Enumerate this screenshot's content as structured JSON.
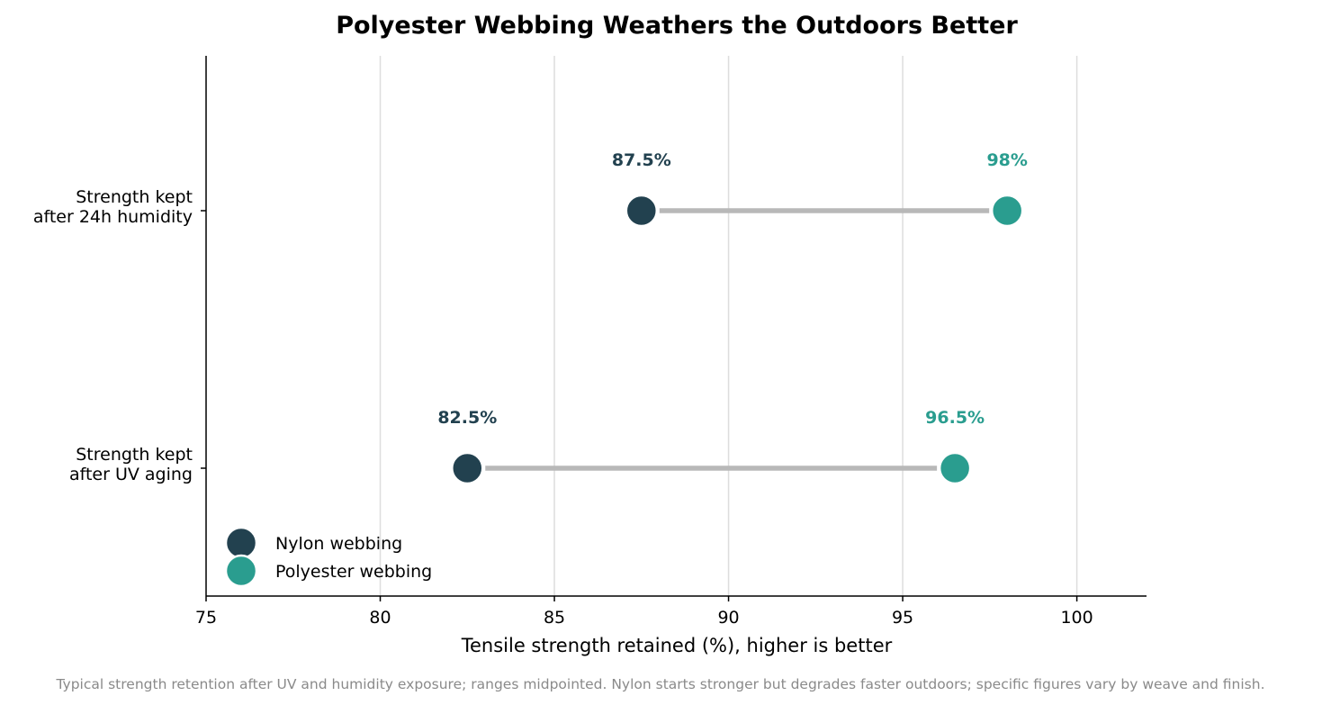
{
  "chart_data": {
    "type": "dumbbell",
    "title": "Polyester Webbing Weathers the Outdoors Better",
    "xlabel": "Tensile strength retained (%), higher is better",
    "ylabel": "",
    "xlim": [
      75,
      102
    ],
    "x_ticks": [
      75,
      80,
      85,
      90,
      95,
      100
    ],
    "x_tick_labels": [
      "75",
      "80",
      "85",
      "90",
      "95",
      "100"
    ],
    "grid": "vertical",
    "legend_position": "lower-left",
    "categories": [
      [
        "Strength kept",
        "after 24h humidity"
      ],
      [
        "Strength kept",
        "after UV aging"
      ]
    ],
    "series": [
      {
        "name": "Nylon webbing",
        "color": "#22414f",
        "values": [
          87.5,
          82.5
        ],
        "labels": [
          "87.5%",
          "82.5%"
        ]
      },
      {
        "name": "Polyester webbing",
        "color": "#2a9d8f",
        "values": [
          98,
          96.5
        ],
        "labels": [
          "98%",
          "96.5%"
        ]
      }
    ],
    "connector_color": "#b8b8b8",
    "footnote": "Typical strength retention after UV and humidity exposure; ranges midpointed. Nylon starts stronger but degrades faster outdoors; specific figures vary by weave and finish."
  }
}
